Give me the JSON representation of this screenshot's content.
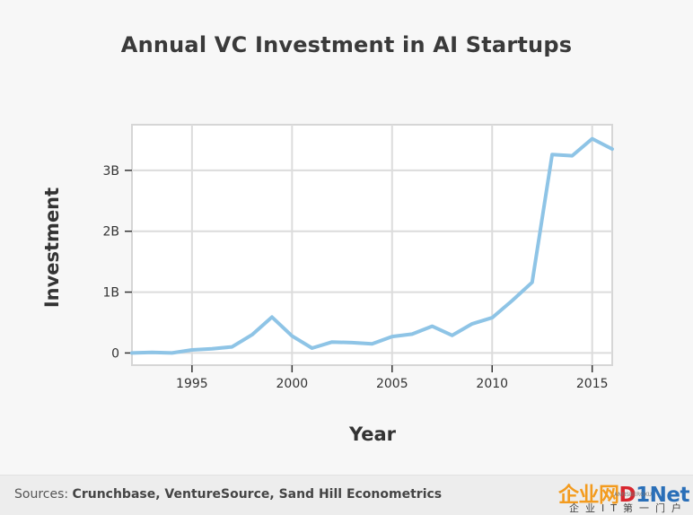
{
  "chart_data": {
    "type": "line",
    "title": "Annual VC Investment in AI Startups",
    "xlabel": "Year",
    "ylabel": "Investment",
    "xlim": [
      1992,
      2016
    ],
    "ylim": [
      -0.2,
      3.75
    ],
    "x_ticks": [
      1995,
      2000,
      2005,
      2010,
      2015
    ],
    "y_ticks": [
      {
        "value": 0,
        "label": "0"
      },
      {
        "value": 1,
        "label": "1B"
      },
      {
        "value": 2,
        "label": "2B"
      },
      {
        "value": 3,
        "label": "3B"
      }
    ],
    "grid": true,
    "series_color": "#8ec4e6",
    "x": [
      1992,
      1993,
      1994,
      1995,
      1996,
      1997,
      1998,
      1999,
      2000,
      2001,
      2002,
      2003,
      2004,
      2005,
      2006,
      2007,
      2008,
      2009,
      2010,
      2011,
      2012,
      2013,
      2014,
      2015,
      2016
    ],
    "y": [
      0.0,
      0.01,
      0.0,
      0.05,
      0.07,
      0.1,
      0.3,
      0.59,
      0.28,
      0.08,
      0.18,
      0.17,
      0.15,
      0.27,
      0.31,
      0.44,
      0.29,
      0.48,
      0.58,
      0.86,
      1.16,
      3.26,
      3.24,
      3.52,
      3.35
    ]
  },
  "footer": {
    "sources_prefix": "Sources: ",
    "sources_names": "Crunchbase, VentureSource, Sand Hill Econometrics"
  },
  "watermark": {
    "part1": "企业网",
    "part2": "D",
    "part3": "1Net",
    "tiny": "ANNSBEROKU",
    "sub": "企业IT第一门户"
  }
}
